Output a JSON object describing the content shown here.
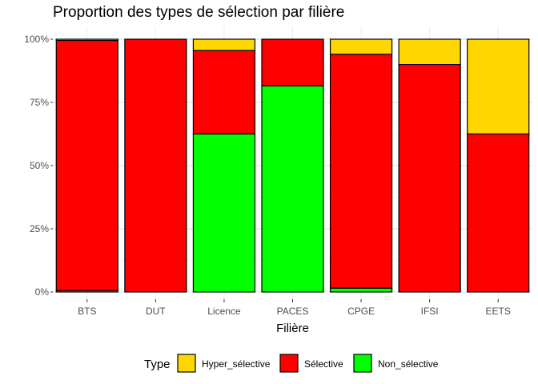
{
  "chart_data": {
    "type": "bar",
    "stacked": "percent",
    "title": "Proportion des types de sélection par filière",
    "xlabel": "Filière",
    "ylabel": "",
    "ylim": [
      0,
      1
    ],
    "y_ticks": [
      "0%",
      "25%",
      "50%",
      "75%",
      "100%"
    ],
    "grid": true,
    "legend_position": "bottom",
    "legend_title": "Type",
    "categories": [
      "BTS",
      "DUT",
      "Licence",
      "PACES",
      "CPGE",
      "IFSI",
      "EETS"
    ],
    "series": [
      {
        "name": "Hyper_sélective",
        "color": "#FFD700",
        "values": [
          0.005,
          0.0,
          0.045,
          0.0,
          0.06,
          0.1,
          0.375
        ]
      },
      {
        "name": "Sélective",
        "color": "#FF0000",
        "values": [
          0.99,
          1.0,
          0.33,
          0.185,
          0.925,
          0.9,
          0.625
        ]
      },
      {
        "name": "Non_sélective",
        "color": "#00FF00",
        "values": [
          0.005,
          0.0,
          0.625,
          0.815,
          0.015,
          0.0,
          0.0
        ]
      }
    ]
  }
}
